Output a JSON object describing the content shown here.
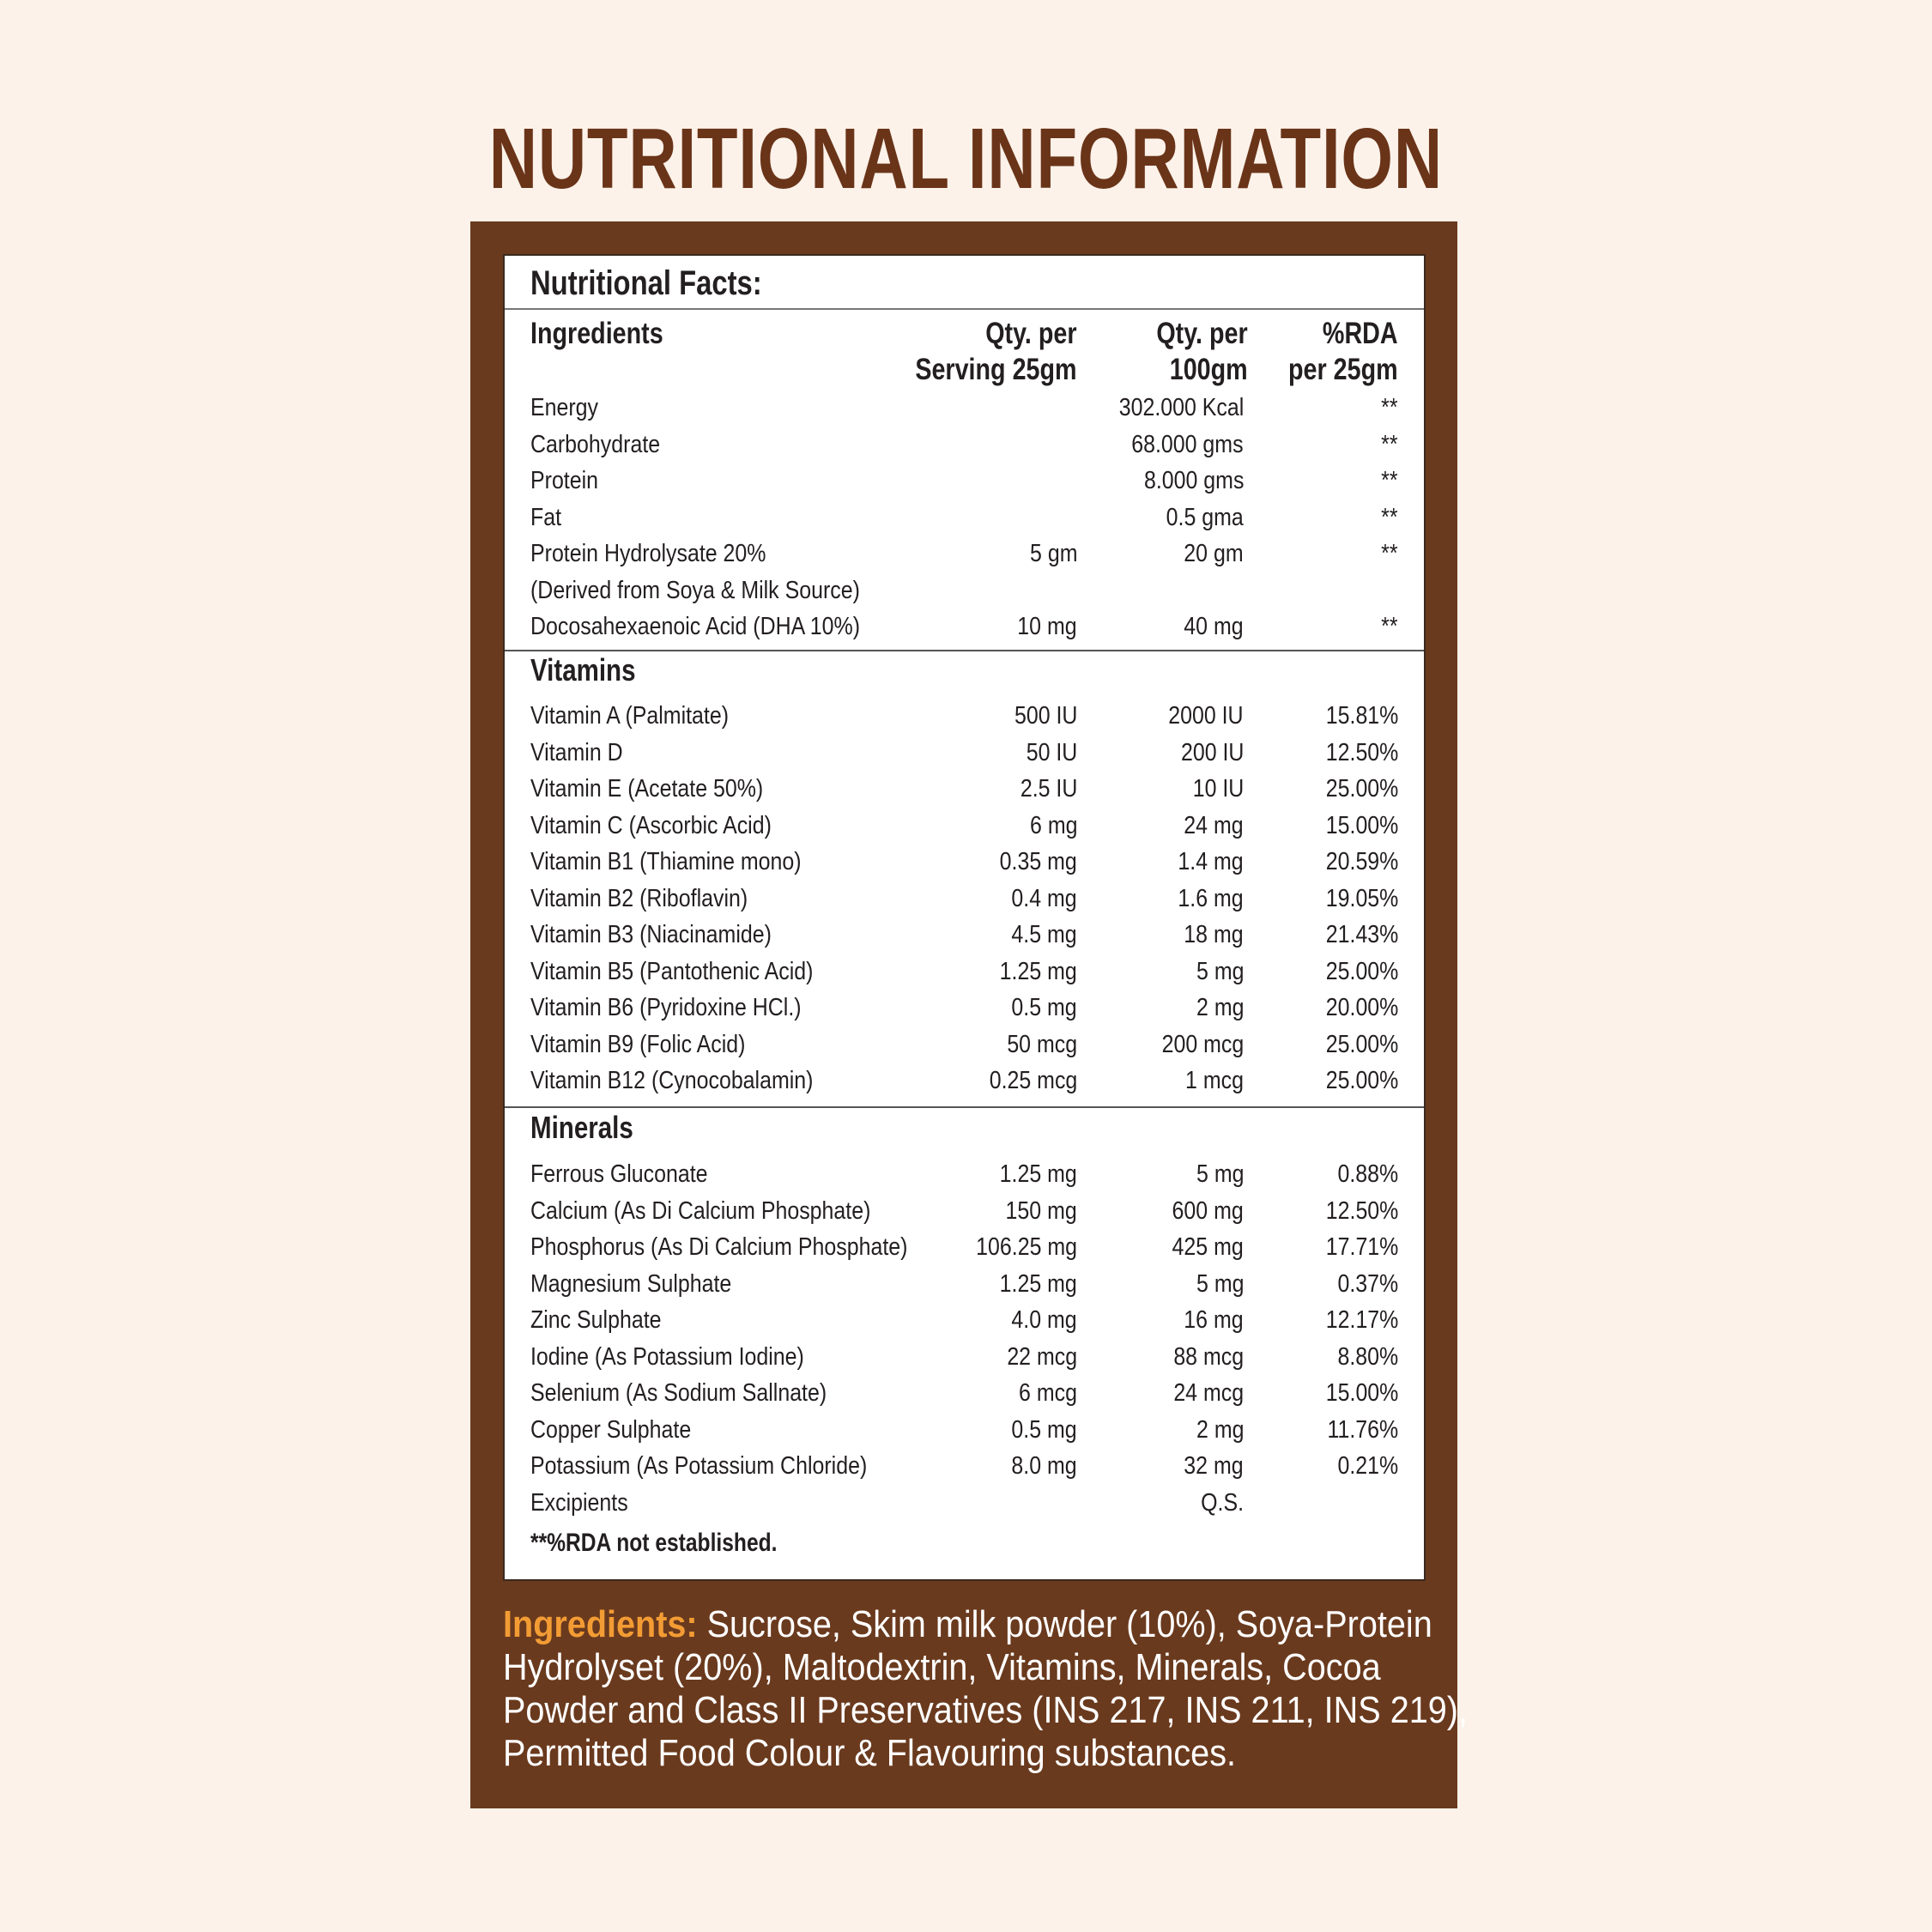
{
  "title": "NUTRITIONAL INFORMATION",
  "colors": {
    "background": "#fcf2e9",
    "panel": "#6a3a1e",
    "title": "#6a3419",
    "ingredients_label": "#f39c34"
  },
  "table": {
    "heading": "Nutritional Facts:",
    "columns": {
      "name": "Ingredients",
      "serving_1": "Qty. per",
      "serving_2": "Serving 25gm",
      "per100_1": "Qty. per",
      "per100_2": "100gm",
      "rda_1": "%RDA",
      "rda_2": "per 25gm"
    },
    "general": [
      {
        "name": "Energy",
        "serving": "",
        "per100": "302.000 Kcal",
        "rda": "**"
      },
      {
        "name": "Carbohydrate",
        "serving": "",
        "per100": "68.000 gms",
        "rda": "**"
      },
      {
        "name": "Protein",
        "serving": "",
        "per100": "8.000 gms",
        "rda": "**"
      },
      {
        "name": "Fat",
        "serving": "",
        "per100": "0.5 gma",
        "rda": "**"
      },
      {
        "name": "Protein Hydrolysate 20%",
        "serving": "5 gm",
        "per100": "20 gm",
        "rda": "**"
      },
      {
        "name": "(Derived from Soya & Milk Source)",
        "serving": "",
        "per100": "",
        "rda": ""
      },
      {
        "name": "Docosahexaenoic Acid (DHA 10%)",
        "serving": "10 mg",
        "per100": "40 mg",
        "rda": "**"
      }
    ],
    "vitamins_title": "Vitamins",
    "vitamins": [
      {
        "name": "Vitamin A (Palmitate)",
        "serving": "500 IU",
        "per100": "2000 IU",
        "rda": "15.81%"
      },
      {
        "name": "Vitamin D",
        "serving": "50 IU",
        "per100": "200 IU",
        "rda": "12.50%"
      },
      {
        "name": "Vitamin E (Acetate 50%)",
        "serving": "2.5 IU",
        "per100": "10 IU",
        "rda": "25.00%"
      },
      {
        "name": "Vitamin C (Ascorbic Acid)",
        "serving": "6 mg",
        "per100": "24 mg",
        "rda": "15.00%"
      },
      {
        "name": "Vitamin B1 (Thiamine mono)",
        "serving": "0.35 mg",
        "per100": "1.4 mg",
        "rda": "20.59%"
      },
      {
        "name": "Vitamin B2 (Riboflavin)",
        "serving": "0.4 mg",
        "per100": "1.6 mg",
        "rda": "19.05%"
      },
      {
        "name": "Vitamin B3 (Niacinamide)",
        "serving": "4.5 mg",
        "per100": "18 mg",
        "rda": "21.43%"
      },
      {
        "name": "Vitamin B5 (Pantothenic Acid)",
        "serving": "1.25 mg",
        "per100": "5 mg",
        "rda": "25.00%"
      },
      {
        "name": "Vitamin B6 (Pyridoxine HCl.)",
        "serving": "0.5 mg",
        "per100": "2 mg",
        "rda": "20.00%"
      },
      {
        "name": "Vitamin B9 (Folic Acid)",
        "serving": "50 mcg",
        "per100": "200 mcg",
        "rda": "25.00%"
      },
      {
        "name": "Vitamin B12 (Cynocobalamin)",
        "serving": "0.25 mcg",
        "per100": "1 mcg",
        "rda": "25.00%"
      }
    ],
    "minerals_title": "Minerals",
    "minerals": [
      {
        "name": "Ferrous Gluconate",
        "serving": "1.25 mg",
        "per100": "5 mg",
        "rda": "0.88%"
      },
      {
        "name": "Calcium (As Di Calcium Phosphate)",
        "serving": "150 mg",
        "per100": "600 mg",
        "rda": "12.50%"
      },
      {
        "name": "Phosphorus (As Di Calcium Phosphate)",
        "serving": "106.25 mg",
        "per100": "425 mg",
        "rda": "17.71%"
      },
      {
        "name": "Magnesium Sulphate",
        "serving": "1.25 mg",
        "per100": "5 mg",
        "rda": "0.37%"
      },
      {
        "name": "Zinc Sulphate",
        "serving": "4.0 mg",
        "per100": "16 mg",
        "rda": "12.17%"
      },
      {
        "name": "Iodine (As Potassium Iodine)",
        "serving": "22 mcg",
        "per100": "88 mcg",
        "rda": "8.80%"
      },
      {
        "name": "Selenium (As Sodium Sallnate)",
        "serving": "6 mcg",
        "per100": "24 mcg",
        "rda": "15.00%"
      },
      {
        "name": "Copper Sulphate",
        "serving": "0.5 mg",
        "per100": "2 mg",
        "rda": "11.76%"
      },
      {
        "name": "Potassium (As Potassium Chloride)",
        "serving": "8.0 mg",
        "per100": "32 mg",
        "rda": "0.21%"
      },
      {
        "name": "Excipients",
        "serving": "",
        "per100": "Q.S.",
        "rda": ""
      }
    ],
    "footnote": "**%RDA not established."
  },
  "ingredients": {
    "label": "Ingredients:",
    "text": " Sucrose, Skim milk powder (10%), Soya-Protein Hydrolyset (20%), Maltodextrin, Vitamins, Minerals, Cocoa Powder and Class II Preservatives (INS 217, INS 211, INS 219), Permitted Food Colour & Flavouring substances."
  }
}
